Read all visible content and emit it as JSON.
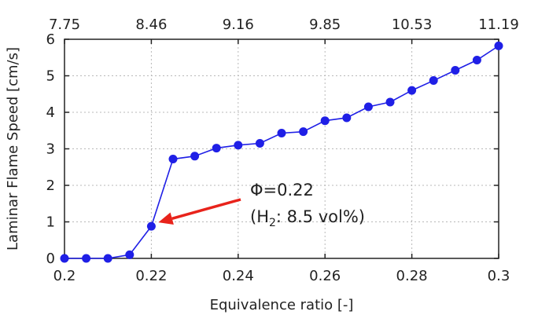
{
  "chart_data": {
    "type": "line",
    "xlabel": "Equivalence ratio [-]",
    "ylabel": "Laminar Flame Speed [cm/s]",
    "xlim": [
      0.2,
      0.3
    ],
    "ylim": [
      0,
      6
    ],
    "x_ticks": [
      "0.2",
      "0.22",
      "0.24",
      "0.26",
      "0.28",
      "0.3"
    ],
    "y_ticks": [
      "0",
      "1",
      "2",
      "3",
      "4",
      "5",
      "6"
    ],
    "secondary_x_ticks": [
      "7.75",
      "8.46",
      "9.16",
      "9.85",
      "10.53",
      "11.19"
    ],
    "grid": true,
    "series": [
      {
        "color": "#1f1fe6",
        "x": [
          0.2,
          0.205,
          0.21,
          0.215,
          0.22,
          0.225,
          0.23,
          0.235,
          0.24,
          0.245,
          0.25,
          0.255,
          0.26,
          0.265,
          0.27,
          0.275,
          0.28,
          0.285,
          0.29,
          0.295,
          0.3
        ],
        "y": [
          0.0,
          0.0,
          0.0,
          0.1,
          0.88,
          2.72,
          2.8,
          3.02,
          3.1,
          3.15,
          3.43,
          3.47,
          3.77,
          3.85,
          4.15,
          4.28,
          4.6,
          4.87,
          5.15,
          5.43,
          5.82
        ]
      }
    ],
    "annotation": {
      "line1": "Φ=0.22",
      "line2_prefix": "(H",
      "line2_sub": "2",
      "line2_suffix": ": 8.5 vol%)",
      "color": "#e8231b",
      "target": {
        "x": 0.22,
        "y": 0.88
      }
    }
  }
}
